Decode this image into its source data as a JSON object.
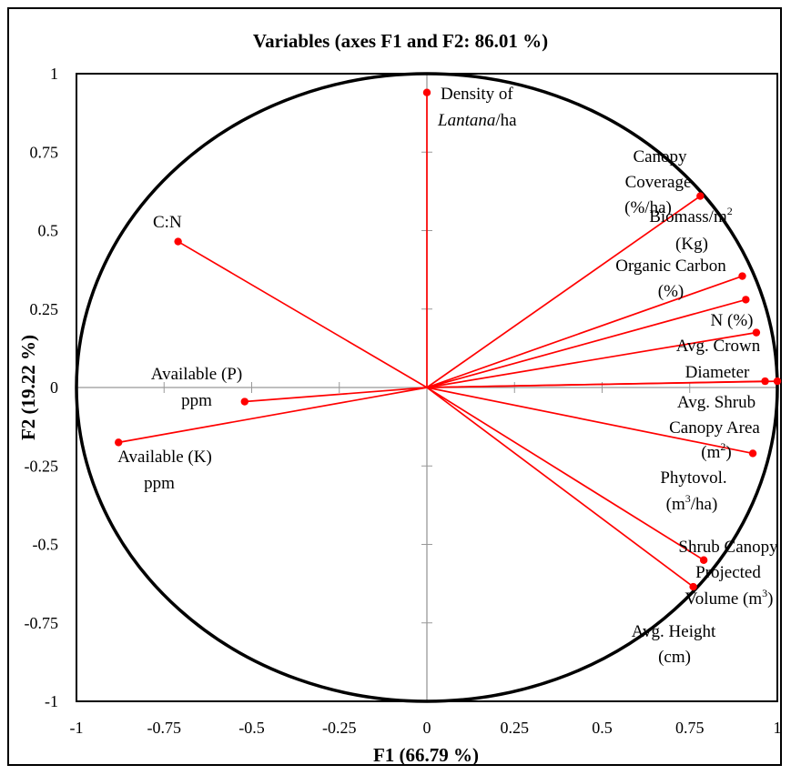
{
  "chart_data": {
    "type": "scatter",
    "title": "Variables (axes F1 and F2: 86.01 %)",
    "xlabel": "F1 (66.79 %)",
    "ylabel": "F2 (19.22 %)",
    "xlim": [
      -1,
      1
    ],
    "ylim": [
      -1,
      1
    ],
    "xticks": [
      "-1",
      "-0.75",
      "-0.5",
      "-0.25",
      "0",
      "0.25",
      "0.5",
      "0.75",
      "1"
    ],
    "yticks": [
      "1",
      "0.75",
      "0.5",
      "0.25",
      "0",
      "-0.25",
      "-0.5",
      "-0.75",
      "-1"
    ],
    "grid": false,
    "correlation_circle": true,
    "vector_color": "#ff0000",
    "points": [
      {
        "label": "Density of Lantana/ha",
        "x": 0.0,
        "y": 0.94
      },
      {
        "label": "Canopy Coverage (%/ha)",
        "x": 0.78,
        "y": 0.61
      },
      {
        "label": "Biomass/m2 (Kg)",
        "x": 0.9,
        "y": 0.355
      },
      {
        "label": "Organic Carbon (%)",
        "x": 0.91,
        "y": 0.28
      },
      {
        "label": "N (%)",
        "x": 0.94,
        "y": 0.175
      },
      {
        "label": "Avg. Crown Diameter",
        "x": 0.965,
        "y": 0.02
      },
      {
        "label": "Avg. Shrub Canopy Area (m2)",
        "x": 1.0,
        "y": 0.02
      },
      {
        "label": "Phytovol. (m3/ha)",
        "x": 0.93,
        "y": -0.21
      },
      {
        "label": "Shrub Canopy Projected Volume (m3)",
        "x": 0.79,
        "y": -0.55
      },
      {
        "label": "Avg. Height (cm)",
        "x": 0.76,
        "y": -0.635
      },
      {
        "label": "C:N",
        "x": -0.71,
        "y": 0.465
      },
      {
        "label": "Available (P) ppm",
        "x": -0.52,
        "y": -0.045
      },
      {
        "label": "Available (K) ppm",
        "x": -0.88,
        "y": -0.175
      }
    ]
  }
}
